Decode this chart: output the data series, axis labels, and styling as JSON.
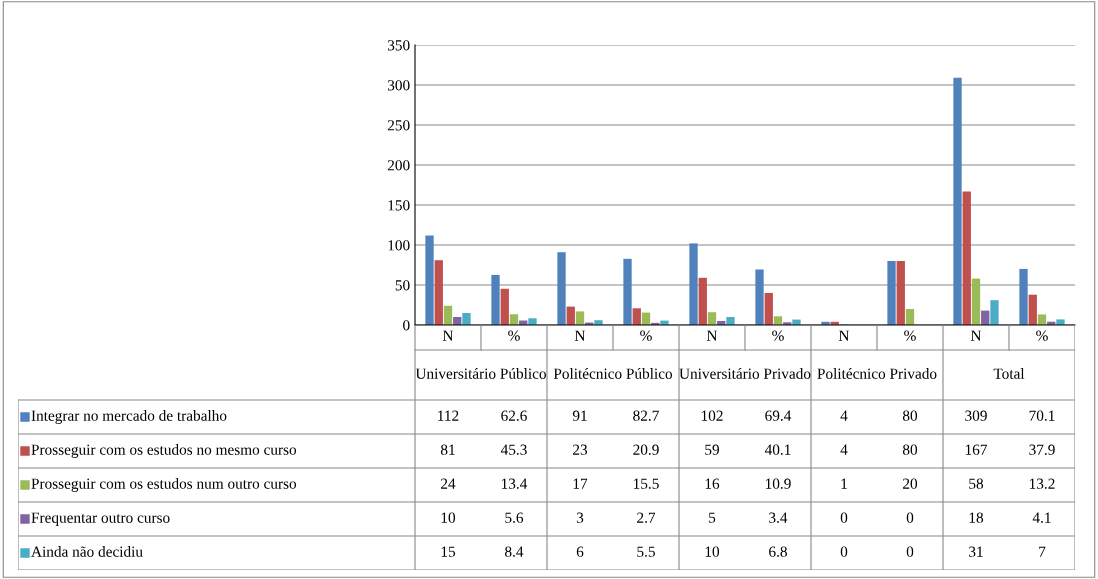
{
  "chart_data": {
    "type": "bar",
    "categories": [
      "N",
      "%",
      "N",
      "%",
      "N",
      "%",
      "N",
      "%",
      "N",
      "%"
    ],
    "annotations": [
      "Universitário Público",
      "Politécnico Público",
      "Universitário Privado",
      "Politécnico Privado",
      "Total"
    ],
    "series": [
      {
        "name": "Integrar no mercado de trabalho",
        "color": "#4f81bd",
        "values": [
          112,
          62.6,
          91,
          82.7,
          102,
          69.4,
          4,
          80,
          309,
          70.1
        ]
      },
      {
        "name": "Prosseguir com os estudos no mesmo curso",
        "color": "#c0504d",
        "values": [
          81,
          45.3,
          23,
          20.9,
          59,
          40.1,
          4,
          80,
          167,
          37.9
        ]
      },
      {
        "name": "Prosseguir com os estudos num outro curso",
        "color": "#9bbb59",
        "values": [
          24,
          13.4,
          17,
          15.5,
          16,
          10.9,
          1,
          20,
          58,
          13.2
        ]
      },
      {
        "name": "Frequentar outro curso",
        "color": "#8064a2",
        "values": [
          10,
          5.6,
          3,
          2.7,
          5,
          3.4,
          0,
          0,
          18,
          4.1
        ]
      },
      {
        "name": "Ainda não decidiu",
        "color": "#4bacc6",
        "values": [
          15,
          8.4,
          6,
          5.5,
          10,
          6.8,
          0,
          0,
          31,
          7
        ]
      }
    ],
    "ylim": [
      0,
      350
    ],
    "yticks": [
      0,
      50,
      100,
      150,
      200,
      250,
      300,
      350
    ],
    "grid": "y",
    "legend": "bottom",
    "data_labels": true
  }
}
